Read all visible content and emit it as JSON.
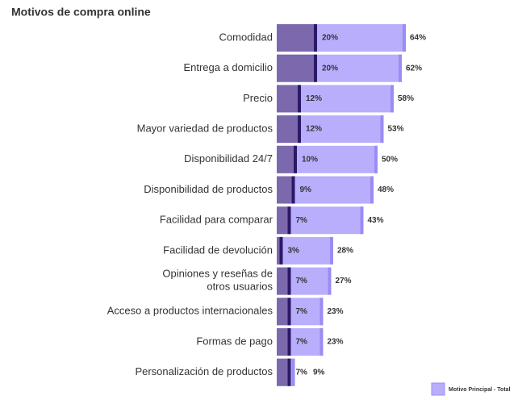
{
  "chart_data": {
    "type": "bar",
    "orientation": "horizontal",
    "title": "Motivos de compra online",
    "categories": [
      "Comodidad",
      "Entrega a domicilio",
      "Precio",
      "Mayor variedad de productos",
      "Disponibilidad 24/7",
      "Disponibilidad de productos",
      "Facilidad para comparar",
      "Facilidad de devolución",
      "Opiniones y reseñas de\notros usuarios",
      "Acceso a productos internacionales",
      "Formas de pago",
      "Personalización de productos"
    ],
    "series": [
      {
        "color": "#b8aefc",
        "edge_color": "#9a8cf3",
        "values": [
          64,
          62,
          58,
          53,
          50,
          48,
          43,
          28,
          27,
          23,
          23,
          9
        ],
        "value_labels": [
          "64%",
          "62%",
          "58%",
          "53%",
          "50%",
          "48%",
          "43%",
          "28%",
          "27%",
          "23%",
          "23%",
          "9%"
        ]
      },
      {
        "color": "#7c68ad",
        "edge_color": "#2b1966",
        "values": [
          20,
          20,
          12,
          12,
          10,
          9,
          7,
          3,
          7,
          7,
          7,
          7
        ],
        "value_labels": [
          "20%",
          "20%",
          "12%",
          "12%",
          "10%",
          "9%",
          "7%",
          "3%",
          "7%",
          "7%",
          "7%",
          "7%"
        ]
      }
    ],
    "legend": {
      "label": "Motivo Principal - Total",
      "color": "#b8aefc",
      "edge_color": "#9a8cf3",
      "position": "bottom-right"
    }
  }
}
